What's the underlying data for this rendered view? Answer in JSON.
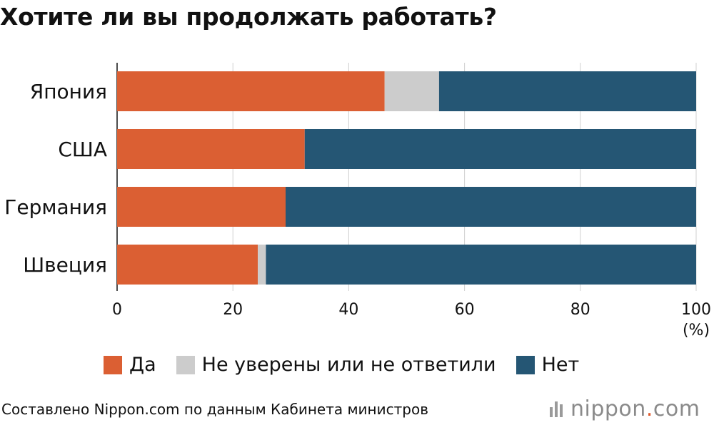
{
  "title": "Хотите ли вы продолжать работать?",
  "colors": {
    "yes": "#db5f33",
    "unsure": "#cccccc",
    "no": "#255674",
    "grid": "#d0d0d0",
    "axis": "#111111"
  },
  "chart_data": {
    "type": "bar",
    "orientation": "horizontal",
    "stacked": true,
    "title": "Хотите ли вы продолжать работать?",
    "categories": [
      "Япония",
      "США",
      "Германия",
      "Швеция"
    ],
    "series": [
      {
        "name": "Да",
        "values": [
          46.2,
          32.4,
          29.1,
          24.3
        ]
      },
      {
        "name": "Не уверены или не ответили",
        "values": [
          9.4,
          0.0,
          0.0,
          1.4
        ]
      },
      {
        "name": "Нет",
        "values": [
          44.4,
          67.6,
          70.9,
          74.3
        ]
      }
    ],
    "xlim": [
      0,
      100
    ],
    "xticks": [
      "0",
      "20",
      "40",
      "60",
      "80",
      "100"
    ],
    "xunit": "(%)",
    "grid": true,
    "legend": "bottom"
  },
  "source": "Составлено Nippon.com по данным Кабинета министров",
  "logo": {
    "name": "nippon",
    "dot": ".",
    "tld": "com"
  }
}
